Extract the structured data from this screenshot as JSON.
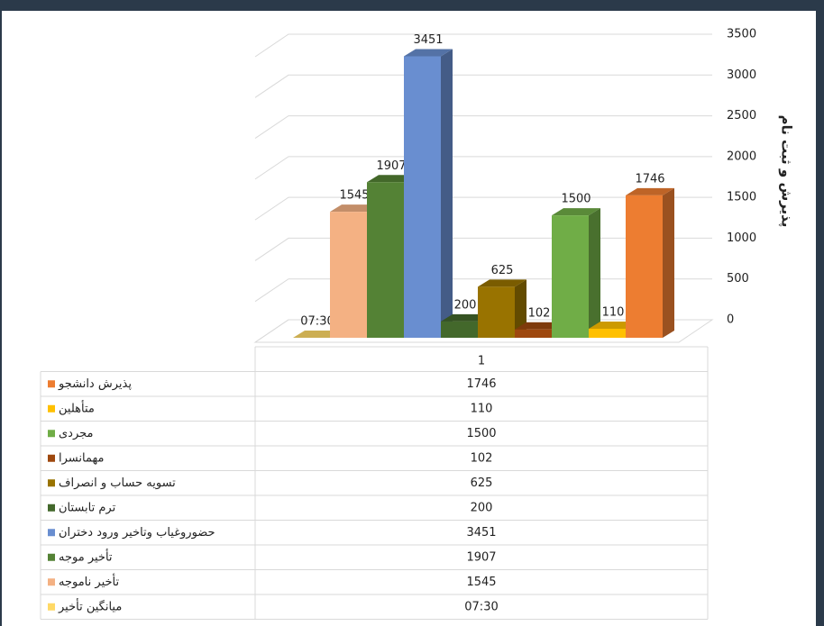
{
  "chart_data": {
    "type": "bar3d",
    "categories": [
      "1"
    ],
    "y_axis_label": "پذیرش و ثبت نام",
    "ylim": [
      0,
      3500
    ],
    "yticks": [
      0,
      500,
      1000,
      1500,
      2000,
      2500,
      3000,
      3500
    ],
    "grid": true,
    "series": [
      {
        "name": "پذیرش دانشجو",
        "color": "#ed7d31",
        "values": [
          1746
        ]
      },
      {
        "name": "متأهلین",
        "color": "#ffc000",
        "values": [
          110
        ]
      },
      {
        "name": "مجردی",
        "color": "#70ad47",
        "values": [
          1500
        ]
      },
      {
        "name": "مهمانسرا",
        "color": "#9e480e",
        "values": [
          102
        ]
      },
      {
        "name": "تسویه حساب و انصراف",
        "color": "#997300",
        "values": [
          625
        ]
      },
      {
        "name": "ترم تابستان",
        "color": "#43682b",
        "values": [
          200
        ]
      },
      {
        "name": "حضوروغیاب وتاخیر ورود دختران",
        "color": "#698ed0",
        "values": [
          3451
        ]
      },
      {
        "name": "تأخیر موجه",
        "color": "#548235",
        "values": [
          1907
        ]
      },
      {
        "name": "تأخیر ناموجه",
        "color": "#f4b183",
        "values": [
          1545
        ]
      },
      {
        "name": "میانگین تأخیر",
        "color": "#ffd966",
        "values": [
          0.3125
        ],
        "value_labels": [
          "07:30"
        ]
      }
    ]
  }
}
